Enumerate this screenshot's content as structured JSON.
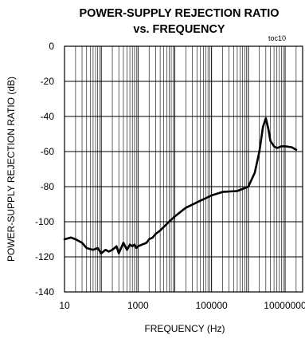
{
  "chart_data": {
    "type": "line",
    "title_line1": "POWER-SUPPLY REJECTION RATIO",
    "title_line2": "vs. FREQUENCY",
    "note": "toc10",
    "xlabel": "FREQUENCY (Hz)",
    "ylabel": "POWER-SUPPLY  REJECTION RATIO (dB)",
    "x_scale": "log",
    "xlim": [
      10,
      30000000
    ],
    "ylim": [
      -140,
      0
    ],
    "x_ticks": [
      10,
      1000,
      100000,
      10000000
    ],
    "x_tick_labels": [
      "10",
      "1000",
      "100000",
      "10000000"
    ],
    "y_ticks": [
      0,
      -20,
      -40,
      -60,
      -80,
      -100,
      -120,
      -140
    ],
    "y_tick_labels": [
      "0",
      "-20",
      "-40",
      "-60",
      "-80",
      "-100",
      "-120",
      "-140"
    ],
    "grid": true,
    "series": [
      {
        "x": [
          10,
          15,
          20,
          30,
          40,
          60,
          80,
          100,
          130,
          160,
          200,
          260,
          300,
          400,
          500,
          600,
          700,
          800,
          900,
          1000,
          1300,
          1700,
          2000,
          2500,
          3000,
          4000,
          5000,
          7000,
          10000,
          20000,
          50000,
          100000,
          200000,
          500000,
          1000000,
          1500000,
          2000000,
          2500000,
          3000000,
          3500000,
          4000000,
          5000000,
          6000000,
          7000000,
          8000000,
          10000000,
          15000000,
          20000000
        ],
        "y": [
          -110,
          -109,
          -110,
          -112,
          -115,
          -116,
          -115,
          -118,
          -116,
          -117,
          -116,
          -114,
          -118,
          -112,
          -116,
          -113,
          -114,
          -113,
          -115,
          -114,
          -113,
          -112,
          -110,
          -109,
          -107,
          -105,
          -103,
          -100,
          -97,
          -92,
          -88,
          -85,
          -83,
          -82.5,
          -80,
          -72,
          -60,
          -46,
          -41,
          -47,
          -54,
          -57,
          -58,
          -57.5,
          -57,
          -57,
          -57.5,
          -59
        ]
      }
    ]
  }
}
